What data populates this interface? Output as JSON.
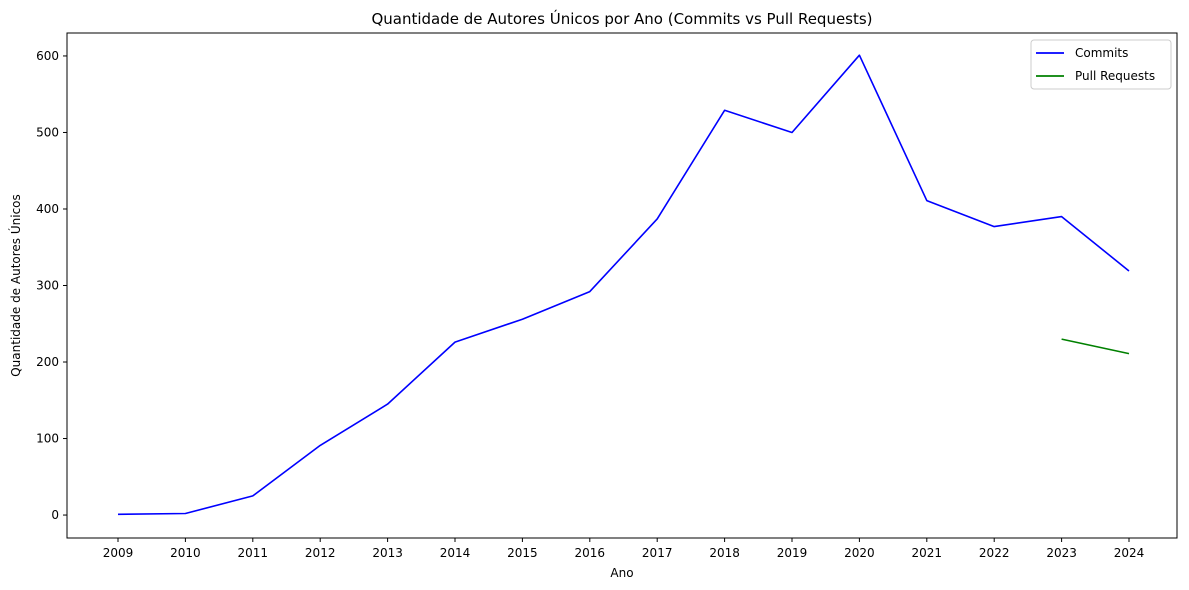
{
  "chart_data": {
    "type": "line",
    "title": "Quantidade de Autores Únicos por Ano (Commits vs Pull Requests)",
    "xlabel": "Ano",
    "ylabel": "Quantidade de Autores Únicos",
    "x": [
      "2009",
      "2010",
      "2011",
      "2012",
      "2013",
      "2014",
      "2015",
      "2016",
      "2017",
      "2018",
      "2019",
      "2020",
      "2021",
      "2022",
      "2023",
      "2024"
    ],
    "ylim": [
      -30,
      630
    ],
    "yticks": [
      0,
      100,
      200,
      300,
      400,
      500,
      600
    ],
    "grid": false,
    "legend_position": "top-right",
    "series": [
      {
        "name": "Commits",
        "color": "#0000ff",
        "values": [
          1,
          2,
          25,
          91,
          145,
          226,
          256,
          292,
          387,
          529,
          500,
          601,
          411,
          377,
          390,
          319
        ]
      },
      {
        "name": "Pull Requests",
        "color": "#008000",
        "values": [
          null,
          null,
          null,
          null,
          null,
          null,
          null,
          null,
          null,
          null,
          null,
          null,
          null,
          null,
          230,
          211
        ]
      }
    ]
  }
}
